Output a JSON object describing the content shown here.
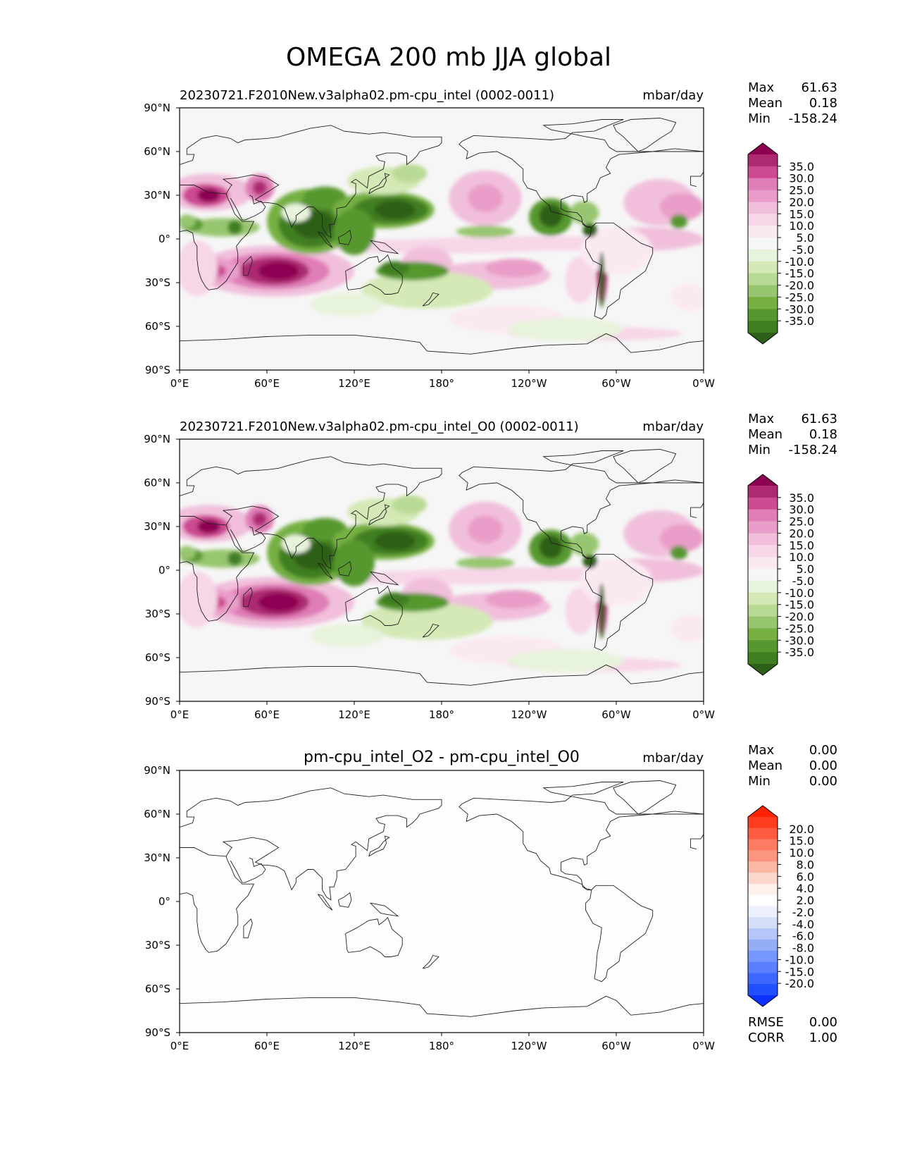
{
  "figure": {
    "title": "OMEGA 200 mb JJA global"
  },
  "colors": {
    "omega_levels": [
      "#2d5f18",
      "#3f7e21",
      "#56982f",
      "#76b042",
      "#98c670",
      "#b9da94",
      "#d4e9b6",
      "#e8f3dc",
      "#f6f6f6",
      "#fbe9f2",
      "#f7d6e8",
      "#f1bfdb",
      "#e99dc8",
      "#df7db6",
      "#cd4a93",
      "#ad2a73",
      "#8e0152"
    ],
    "diff_levels": [
      "#0b30ff",
      "#2350ff",
      "#3e67ff",
      "#5a80ff",
      "#7696ff",
      "#94aef6",
      "#b4c6fa",
      "#d4def9",
      "#ecf0fc",
      "#ffffff",
      "#fff0ec",
      "#fcd7cc",
      "#fbb8a4",
      "#fb9580",
      "#fb7b63",
      "#fd5c40",
      "#ff3d1e",
      "#ff2200"
    ],
    "land_outline": "#222222",
    "map_background": "#f6f6f6"
  },
  "chart_data": [
    {
      "type": "map",
      "title": "20230721.F2010New.v3alpha02.pm-cpu_intel (0002-0011)",
      "units": "mbar/day",
      "stats": {
        "labels": [
          "Max",
          "Mean",
          "Min"
        ],
        "values": [
          "61.63",
          "0.18",
          "-158.24"
        ]
      },
      "colorbar_ticks": [
        "35.0",
        "30.0",
        "25.0",
        "20.0",
        "15.0",
        "10.0",
        "5.0",
        "-5.0",
        "-10.0",
        "-15.0",
        "-20.0",
        "-25.0",
        "-30.0",
        "-35.0"
      ],
      "x_ticks": [
        "0°E",
        "60°E",
        "120°E",
        "180°",
        "120°W",
        "60°W",
        "0°W"
      ],
      "y_ticks": [
        "90°N",
        "60°N",
        "30°N",
        "0°",
        "30°S",
        "60°S",
        "90°S"
      ],
      "xlim": [
        0,
        360
      ],
      "ylim": [
        -90,
        90
      ]
    },
    {
      "type": "map",
      "title": "20230721.F2010New.v3alpha02.pm-cpu_intel_O0 (0002-0011)",
      "units": "mbar/day",
      "stats": {
        "labels": [
          "Max",
          "Mean",
          "Min"
        ],
        "values": [
          "61.63",
          "0.18",
          "-158.24"
        ]
      },
      "colorbar_ticks": [
        "35.0",
        "30.0",
        "25.0",
        "20.0",
        "15.0",
        "10.0",
        "5.0",
        "-5.0",
        "-10.0",
        "-15.0",
        "-20.0",
        "-25.0",
        "-30.0",
        "-35.0"
      ],
      "x_ticks": [
        "0°E",
        "60°E",
        "120°E",
        "180°",
        "120°W",
        "60°W",
        "0°W"
      ],
      "y_ticks": [
        "90°N",
        "60°N",
        "30°N",
        "0°",
        "30°S",
        "60°S",
        "90°S"
      ],
      "xlim": [
        0,
        360
      ],
      "ylim": [
        -90,
        90
      ]
    },
    {
      "type": "map",
      "title": "pm-cpu_intel_O2 - pm-cpu_intel_O0",
      "units": "mbar/day",
      "stats": {
        "labels": [
          "Max",
          "Mean",
          "Min"
        ],
        "values": [
          "0.00",
          "0.00",
          "0.00"
        ]
      },
      "colorbar_ticks": [
        "20.0",
        "15.0",
        "10.0",
        "8.0",
        "6.0",
        "4.0",
        "2.0",
        "-2.0",
        "-4.0",
        "-6.0",
        "-8.0",
        "-10.0",
        "-15.0",
        "-20.0"
      ],
      "x_ticks": [
        "0°E",
        "60°E",
        "120°E",
        "180°",
        "120°W",
        "60°W",
        "0°W"
      ],
      "y_ticks": [
        "90°N",
        "60°N",
        "30°N",
        "0°",
        "30°S",
        "60°S",
        "90°S"
      ],
      "xlim": [
        0,
        360
      ],
      "ylim": [
        -90,
        90
      ],
      "metrics": {
        "labels": [
          "RMSE",
          "CORR"
        ],
        "values": [
          "0.00",
          "1.00"
        ]
      }
    }
  ]
}
